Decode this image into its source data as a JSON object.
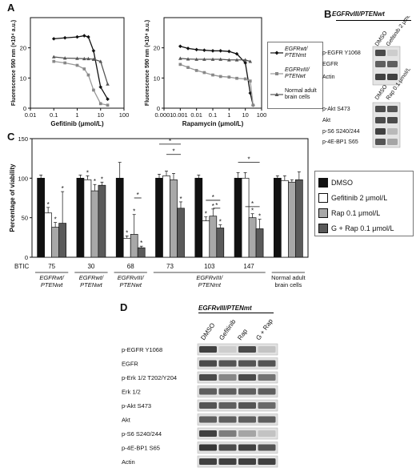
{
  "panels": {
    "A": "A",
    "B": "B",
    "C": "C",
    "D": "D"
  },
  "panelA": {
    "chart_left": {
      "type": "line",
      "ylabel": "Fluorescence 590 nm (×10⁴ a.u.)",
      "xlabel": "Gefitinib (μmol/L)",
      "xscale": "log",
      "xlim": [
        0.01,
        100
      ],
      "ylim": [
        0,
        30
      ],
      "xticks": [
        "0.01",
        "0.1",
        "1",
        "10",
        "100"
      ],
      "yticks": [
        "0",
        "10",
        "20"
      ],
      "series": [
        {
          "name": "EGFRwt/PTENmt",
          "marker": "diamond",
          "x": [
            0.1,
            0.3,
            1,
            2,
            3,
            5,
            10,
            20
          ],
          "y": [
            23,
            23.3,
            23.6,
            24,
            23.6,
            19,
            7,
            3
          ]
        },
        {
          "name": "EGFRvIII/PTENwt",
          "marker": "square",
          "x": [
            0.1,
            0.3,
            1,
            2,
            3,
            5,
            10,
            20
          ],
          "y": [
            15.5,
            15,
            14.2,
            13,
            11,
            6,
            1.5,
            1
          ]
        },
        {
          "name": "Normal adult brain cells",
          "marker": "triangle",
          "x": [
            0.1,
            0.3,
            1,
            2,
            3,
            5,
            10,
            20
          ],
          "y": [
            17,
            16.6,
            16.5,
            16.4,
            16.4,
            16.2,
            15.5,
            8
          ]
        }
      ]
    },
    "chart_right": {
      "type": "line",
      "ylabel": "Fluorescence 590 nm (×10⁴ a.u.)",
      "xlabel": "Rapamycin (μmol/L)",
      "xscale": "log",
      "xlim": [
        0.0001,
        100
      ],
      "ylim": [
        0,
        30
      ],
      "xticks": [
        "0.0001",
        "0.001",
        "0.01",
        "0.1",
        "1",
        "10",
        "100"
      ],
      "yticks": [
        "0",
        "10",
        "20"
      ],
      "series": [
        {
          "name": "EGFRwt/PTENmt",
          "marker": "diamond",
          "x": [
            0.001,
            0.003,
            0.01,
            0.03,
            0.1,
            0.3,
            1,
            3,
            10,
            20,
            30
          ],
          "y": [
            20.5,
            19.8,
            19.4,
            19.2,
            19,
            19,
            18.8,
            18,
            15,
            5,
            1
          ]
        },
        {
          "name": "EGFRvIII/PTENwt",
          "marker": "square",
          "x": [
            0.001,
            0.003,
            0.01,
            0.03,
            0.1,
            0.3,
            1,
            3,
            10,
            20,
            30
          ],
          "y": [
            14.5,
            13.5,
            12.5,
            11.8,
            11,
            10.5,
            10.3,
            9.9,
            9.7,
            9,
            1
          ]
        },
        {
          "name": "Normal adult brain cells",
          "marker": "triangle",
          "x": [
            0.001,
            0.003,
            0.01,
            0.03,
            0.1,
            0.3,
            1,
            3,
            10,
            20
          ],
          "y": [
            16.5,
            16.3,
            16.2,
            16.2,
            16.2,
            16.2,
            16,
            16,
            16,
            15.5
          ]
        }
      ]
    },
    "legend": [
      {
        "line1": "EGFRwt/",
        "line2": "PTENmt",
        "marker": "diamond",
        "italic": true
      },
      {
        "line1": "EGFRvIII/",
        "line2": "PTENwt",
        "marker": "square",
        "italic": true
      },
      {
        "line1": "Normal adult",
        "line2": "brain cells",
        "marker": "triangle",
        "italic": false
      }
    ]
  },
  "panelB": {
    "header": "EGFRvIII/PTENwt",
    "cols1": [
      "DMSO",
      "Gefitinib 2 μmol/L"
    ],
    "cols2": [
      "DMSO",
      "Rap 0.1 μmol/L"
    ],
    "rows1": [
      "p-EGFR Y1068",
      "EGFR",
      "Actin"
    ],
    "rows2": [
      "p-Akt S473",
      "Akt",
      "p-S6 S240/244",
      "p-4E-BP1 S65"
    ]
  },
  "panelC": {
    "chart_data": {
      "type": "bar",
      "ylabel": "Percentage of viability",
      "ylim": [
        0,
        150
      ],
      "yticks": [
        "0",
        "50",
        "100",
        "150"
      ],
      "series": [
        {
          "name": "DMSO",
          "color": "#111111"
        },
        {
          "name": "Gefitinib 2 μmol/L",
          "color": "#ffffff"
        },
        {
          "name": "Rap 0.1 μmol/L",
          "color": "#a8a8a8"
        },
        {
          "name": "G + Rap 0.1 μmol/L",
          "color": "#5a5a5a"
        }
      ],
      "groups": [
        {
          "btic": "75",
          "values": [
            100,
            56,
            38,
            43
          ],
          "errors": [
            4,
            7,
            6,
            40
          ]
        },
        {
          "btic": "30",
          "values": [
            100,
            98,
            84,
            91
          ],
          "errors": [
            4,
            5,
            8,
            4
          ]
        },
        {
          "btic": "68",
          "values": [
            100,
            24,
            29,
            12
          ],
          "errors": [
            20,
            3,
            25,
            2
          ]
        },
        {
          "btic": "73",
          "values": [
            100,
            103,
            98,
            62
          ],
          "errors": [
            5,
            6,
            8,
            8
          ]
        },
        {
          "btic": "103",
          "values": [
            100,
            46,
            52,
            37
          ],
          "errors": [
            4,
            5,
            9,
            4
          ]
        },
        {
          "btic": "147",
          "values": [
            100,
            100,
            50,
            36
          ],
          "errors": [
            7,
            7,
            5,
            12
          ]
        },
        {
          "btic": "",
          "values": [
            100,
            97,
            95,
            98
          ],
          "errors": [
            3,
            6,
            3,
            10
          ]
        }
      ],
      "btic_label": "BTIC"
    },
    "categories": [
      {
        "line1": "EGFRwt/",
        "line2": "PTENwt",
        "italic": true
      },
      {
        "line1": "EGFRwt/",
        "line2": "PTENwt",
        "italic": true
      },
      {
        "line1": "EGFRvIII/",
        "line2": "PTENwt",
        "italic": true
      },
      {
        "line1": "EGFRvIII/",
        "line2": "PTENmt",
        "italic": true
      },
      {
        "line1": "Normal adult",
        "line2": "brain cells",
        "italic": false
      }
    ],
    "legend": [
      "DMSO",
      "Gefitinib 2 μmol/L",
      "Rap 0.1 μmol/L",
      "G + Rap 0.1 μmol/L"
    ]
  },
  "panelD": {
    "header": "EGFRvIII/PTENmt",
    "cols": [
      "DMSO",
      "Gefitinib",
      "Rap",
      "G + Rap"
    ],
    "rows": [
      "p-EGFR Y1068",
      "EGFR",
      "p-Erk 1/2 T202/Y204",
      "Erk 1/2",
      "p-Akt S473",
      "Akt",
      "p-S6 S240/244",
      "p-4E-BP1 S65",
      "Actin"
    ]
  }
}
